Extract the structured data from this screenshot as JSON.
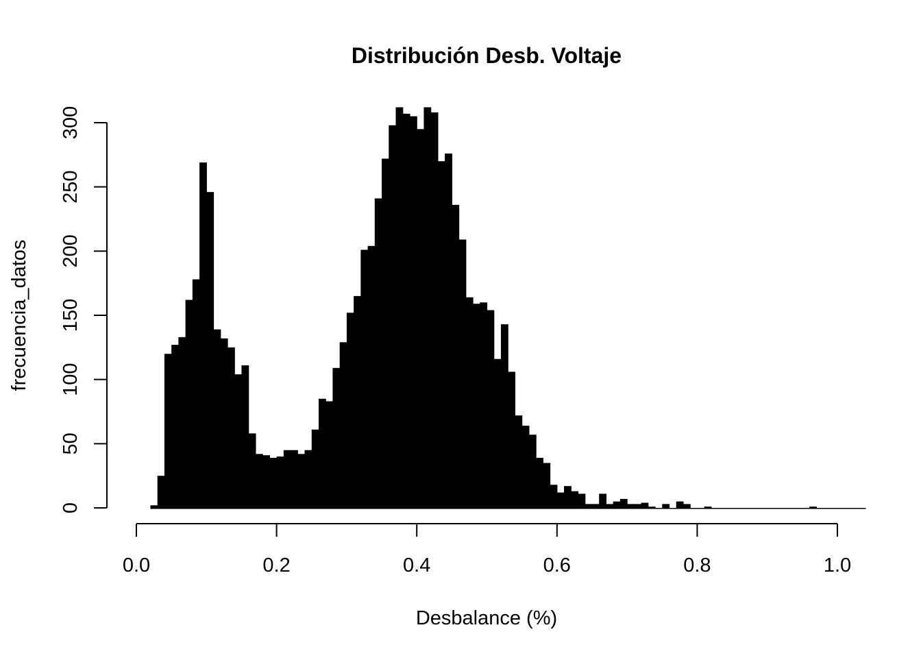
{
  "chart_data": {
    "type": "bar",
    "title": "Distribución Desb. Voltaje",
    "xlabel": "Desbalance (%)",
    "ylabel": "frecuencia_datos",
    "bin_start": 0.02,
    "bin_width": 0.01,
    "values": [
      2,
      25,
      120,
      127,
      133,
      162,
      178,
      269,
      246,
      139,
      132,
      125,
      104,
      111,
      58,
      42,
      41,
      39,
      40,
      45,
      45,
      42,
      45,
      61,
      85,
      83,
      109,
      129,
      152,
      165,
      201,
      204,
      241,
      272,
      298,
      312,
      307,
      305,
      295,
      312,
      308,
      270,
      276,
      236,
      209,
      164,
      159,
      160,
      154,
      116,
      143,
      106,
      72,
      64,
      57,
      39,
      35,
      18,
      12,
      17,
      13,
      11,
      3,
      3,
      11,
      3,
      5,
      7,
      3,
      3,
      4,
      1,
      0,
      3,
      0,
      5,
      3,
      0,
      0,
      1,
      0,
      0,
      0,
      0,
      0,
      0,
      0,
      0,
      0,
      0,
      0,
      0,
      0,
      0,
      1,
      0,
      0,
      0,
      0,
      0,
      0,
      0
    ],
    "xlim": [
      0,
      1.0
    ],
    "ylim": [
      0,
      300
    ],
    "x_ticks": [
      "0.0",
      "0.2",
      "0.4",
      "0.6",
      "0.8",
      "1.0"
    ],
    "y_ticks": [
      "0",
      "50",
      "100",
      "150",
      "200",
      "250",
      "300"
    ],
    "bar_color": "#000000",
    "grid": false
  }
}
